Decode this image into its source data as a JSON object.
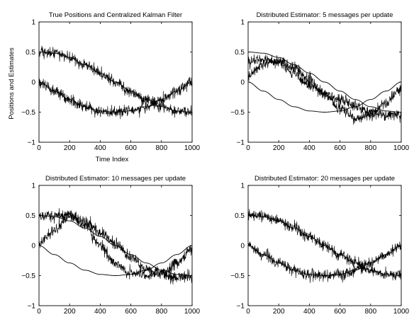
{
  "figure": {
    "ylabel": "Positions and Estimates",
    "xlabel": "Time Index"
  },
  "chart_data": [
    {
      "type": "line",
      "title": "True Positions and Centralized Kalman Filter",
      "xlim": [
        0,
        1000
      ],
      "ylim": [
        -1,
        1
      ],
      "xticks": [
        0,
        200,
        400,
        600,
        800,
        1000
      ],
      "yticks": [
        -1,
        -0.5,
        0,
        0.5,
        1
      ],
      "xticklabels": [
        "0",
        "200",
        "400",
        "600",
        "800",
        "1000"
      ],
      "yticklabels": [
        "−1",
        "−0.5",
        "0",
        "0.5",
        "1"
      ],
      "grid": false,
      "series": [
        {
          "style": "smooth",
          "x": [
            0,
            100,
            200,
            300,
            400,
            500,
            600,
            700,
            800,
            900,
            1000
          ],
          "y": [
            0.5,
            0.48,
            0.41,
            0.29,
            0.15,
            0.0,
            -0.15,
            -0.29,
            -0.41,
            -0.48,
            -0.5
          ]
        },
        {
          "style": "smooth",
          "x": [
            0,
            100,
            200,
            300,
            400,
            500,
            600,
            700,
            800,
            900,
            1000
          ],
          "y": [
            0.0,
            -0.15,
            -0.29,
            -0.41,
            -0.48,
            -0.5,
            -0.48,
            -0.41,
            -0.29,
            -0.15,
            0.0
          ]
        },
        {
          "style": "noisy",
          "x": [
            0,
            100,
            200,
            300,
            400,
            500,
            600,
            700,
            800,
            900,
            1000
          ],
          "y": [
            0.5,
            0.48,
            0.41,
            0.29,
            0.15,
            0.0,
            -0.15,
            -0.29,
            -0.41,
            -0.48,
            -0.5
          ]
        },
        {
          "style": "noisy",
          "x": [
            0,
            100,
            200,
            300,
            400,
            500,
            600,
            700,
            800,
            900,
            1000
          ],
          "y": [
            0.0,
            -0.15,
            -0.29,
            -0.41,
            -0.48,
            -0.5,
            -0.48,
            -0.41,
            -0.29,
            -0.15,
            0.0
          ]
        }
      ]
    },
    {
      "type": "line",
      "title": "Distributed Estimator: 5 messages per update",
      "xlim": [
        0,
        1000
      ],
      "ylim": [
        -1,
        1
      ],
      "xticks": [
        0,
        200,
        400,
        600,
        800,
        1000
      ],
      "yticks": [
        -1,
        -0.5,
        0,
        0.5,
        1
      ],
      "xticklabels": [
        "0",
        "200",
        "400",
        "600",
        "800",
        "1000"
      ],
      "yticklabels": [
        "−1",
        "−0.5",
        "0",
        "0.5",
        "1"
      ],
      "grid": false,
      "series": [
        {
          "style": "smooth",
          "x": [
            0,
            100,
            200,
            300,
            400,
            500,
            600,
            700,
            800,
            900,
            1000
          ],
          "y": [
            0.5,
            0.48,
            0.41,
            0.29,
            0.15,
            0.0,
            -0.15,
            -0.29,
            -0.41,
            -0.48,
            -0.5
          ]
        },
        {
          "style": "smooth",
          "x": [
            0,
            100,
            200,
            300,
            400,
            500,
            600,
            700,
            800,
            900,
            1000
          ],
          "y": [
            0.0,
            -0.15,
            -0.29,
            -0.41,
            -0.48,
            -0.5,
            -0.48,
            -0.41,
            -0.29,
            -0.15,
            0.0
          ]
        },
        {
          "style": "noisy",
          "x": [
            0,
            100,
            200,
            300,
            400,
            500,
            600,
            700,
            800,
            900,
            1000
          ],
          "y": [
            0.35,
            0.38,
            0.32,
            0.15,
            -0.05,
            -0.2,
            -0.3,
            -0.4,
            -0.5,
            -0.55,
            -0.55
          ]
        },
        {
          "style": "noisy",
          "x": [
            0,
            100,
            200,
            300,
            400,
            500,
            600,
            700,
            800,
            900,
            1000
          ],
          "y": [
            0.1,
            0.3,
            0.35,
            0.25,
            0.05,
            -0.2,
            -0.45,
            -0.6,
            -0.55,
            -0.35,
            -0.1
          ]
        }
      ]
    },
    {
      "type": "line",
      "title": "Distributed Estimator: 10 messages per update",
      "xlim": [
        0,
        1000
      ],
      "ylim": [
        -1,
        1
      ],
      "xticks": [
        0,
        200,
        400,
        600,
        800,
        1000
      ],
      "yticks": [
        -1,
        -0.5,
        0,
        0.5,
        1
      ],
      "xticklabels": [
        "0",
        "200",
        "400",
        "600",
        "800",
        "1000"
      ],
      "yticklabels": [
        "−1",
        "−0.5",
        "0",
        "0.5",
        "1"
      ],
      "grid": false,
      "series": [
        {
          "style": "smooth",
          "x": [
            0,
            100,
            200,
            300,
            400,
            500,
            600,
            700,
            800,
            900,
            1000
          ],
          "y": [
            0.5,
            0.48,
            0.41,
            0.29,
            0.15,
            0.0,
            -0.15,
            -0.29,
            -0.41,
            -0.48,
            -0.5
          ]
        },
        {
          "style": "smooth",
          "x": [
            0,
            100,
            200,
            300,
            400,
            500,
            600,
            700,
            800,
            900,
            1000
          ],
          "y": [
            0.0,
            -0.15,
            -0.29,
            -0.41,
            -0.48,
            -0.5,
            -0.48,
            -0.41,
            -0.29,
            -0.15,
            0.0
          ]
        },
        {
          "style": "noisy",
          "x": [
            0,
            100,
            200,
            300,
            400,
            500,
            600,
            700,
            800,
            900,
            1000
          ],
          "y": [
            0.5,
            0.5,
            0.5,
            0.4,
            0.22,
            0.02,
            -0.2,
            -0.38,
            -0.48,
            -0.52,
            -0.5
          ]
        },
        {
          "style": "noisy",
          "x": [
            0,
            100,
            200,
            300,
            400,
            500,
            600,
            700,
            800,
            900,
            1000
          ],
          "y": [
            0.05,
            0.25,
            0.5,
            0.35,
            0.0,
            -0.3,
            -0.45,
            -0.5,
            -0.45,
            -0.3,
            -0.05
          ]
        }
      ]
    },
    {
      "type": "line",
      "title": "Distributed Estimator: 20 messages per update",
      "xlim": [
        0,
        1000
      ],
      "ylim": [
        -1,
        1
      ],
      "xticks": [
        0,
        200,
        400,
        600,
        800,
        1000
      ],
      "yticks": [
        -1,
        -0.5,
        0,
        0.5,
        1
      ],
      "xticklabels": [
        "0",
        "200",
        "400",
        "600",
        "800",
        "1000"
      ],
      "yticklabels": [
        "−1",
        "−0.5",
        "0",
        "0.5",
        "1"
      ],
      "grid": false,
      "series": [
        {
          "style": "smooth",
          "x": [
            0,
            100,
            200,
            300,
            400,
            500,
            600,
            700,
            800,
            900,
            1000
          ],
          "y": [
            0.5,
            0.48,
            0.41,
            0.29,
            0.15,
            0.0,
            -0.15,
            -0.29,
            -0.41,
            -0.48,
            -0.5
          ]
        },
        {
          "style": "smooth",
          "x": [
            0,
            100,
            200,
            300,
            400,
            500,
            600,
            700,
            800,
            900,
            1000
          ],
          "y": [
            0.0,
            -0.15,
            -0.29,
            -0.41,
            -0.48,
            -0.5,
            -0.48,
            -0.41,
            -0.29,
            -0.15,
            0.0
          ]
        },
        {
          "style": "noisy",
          "x": [
            0,
            100,
            200,
            300,
            400,
            500,
            600,
            700,
            800,
            900,
            1000
          ],
          "y": [
            0.5,
            0.48,
            0.41,
            0.29,
            0.15,
            0.0,
            -0.15,
            -0.29,
            -0.41,
            -0.48,
            -0.5
          ]
        },
        {
          "style": "noisy",
          "x": [
            0,
            100,
            200,
            300,
            400,
            500,
            600,
            700,
            800,
            900,
            1000
          ],
          "y": [
            0.0,
            -0.15,
            -0.29,
            -0.41,
            -0.48,
            -0.5,
            -0.48,
            -0.41,
            -0.29,
            -0.15,
            0.0
          ]
        }
      ]
    }
  ]
}
